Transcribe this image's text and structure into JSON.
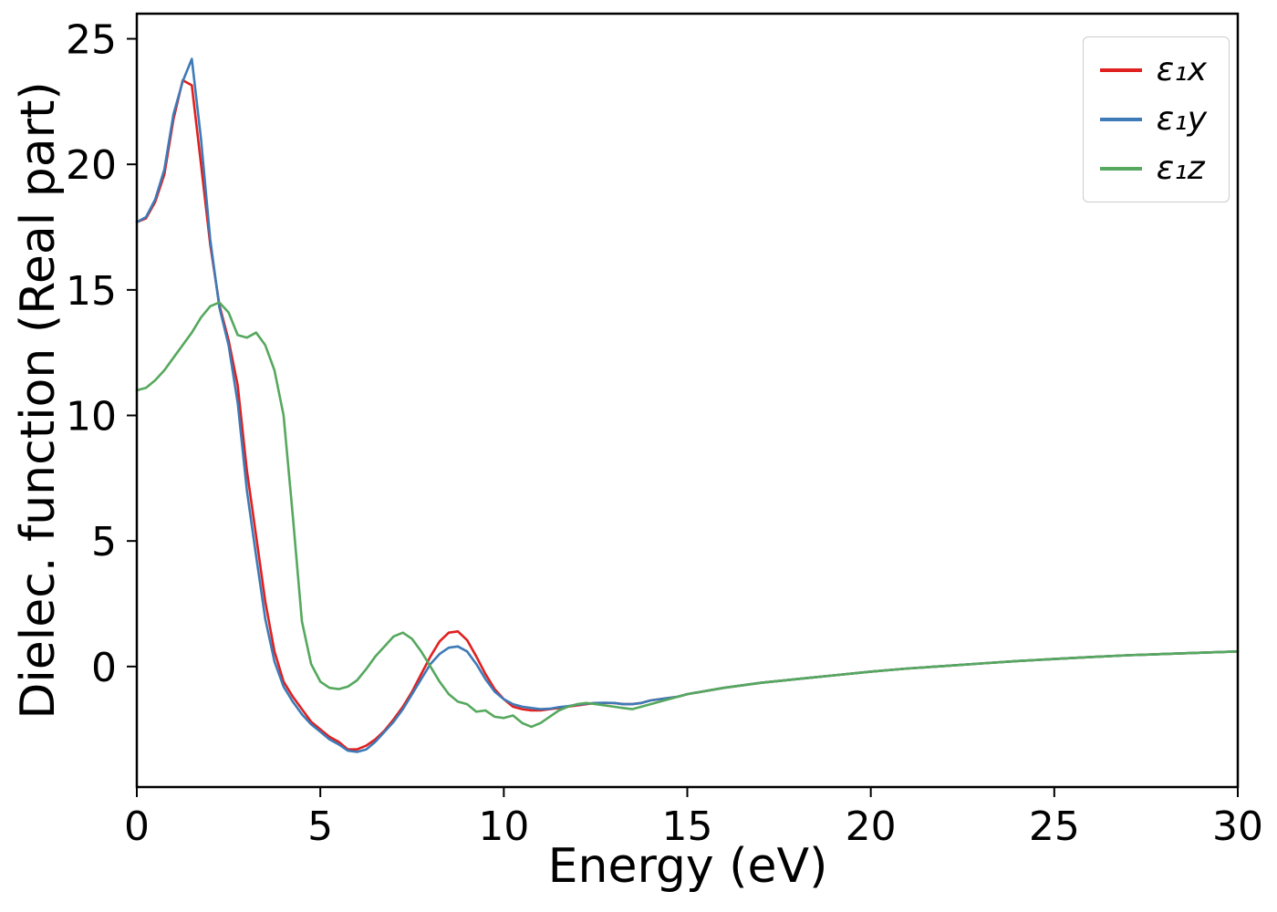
{
  "figure": {
    "background": "#ffffff",
    "axes_color": "#000000"
  },
  "chart_data": {
    "type": "line",
    "title": "",
    "xlabel": "Energy (eV)",
    "ylabel": "Dielec. function (Real part)",
    "xlim": [
      0,
      30
    ],
    "ylim": [
      -4.8,
      26
    ],
    "xticks": [
      0,
      5,
      10,
      15,
      20,
      25,
      30
    ],
    "yticks": [
      0,
      5,
      10,
      15,
      20,
      25
    ],
    "grid": false,
    "legend_position": "upper right",
    "x": [
      0,
      0.25,
      0.5,
      0.75,
      1,
      1.25,
      1.5,
      1.75,
      2,
      2.25,
      2.5,
      2.75,
      3,
      3.25,
      3.5,
      3.75,
      4,
      4.25,
      4.5,
      4.75,
      5,
      5.25,
      5.5,
      5.75,
      6,
      6.25,
      6.5,
      6.75,
      7,
      7.25,
      7.5,
      7.75,
      8,
      8.25,
      8.5,
      8.75,
      9,
      9.25,
      9.5,
      9.75,
      10,
      10.25,
      10.5,
      10.75,
      11,
      11.25,
      11.5,
      11.75,
      12,
      12.25,
      12.5,
      12.75,
      13,
      13.25,
      13.5,
      13.75,
      14,
      14.25,
      14.5,
      14.75,
      15,
      16,
      17,
      18,
      19,
      20,
      21,
      22,
      23,
      24,
      25,
      26,
      27,
      28,
      29,
      30
    ],
    "series": [
      {
        "name": "eps1x",
        "label": "ε₁x",
        "color": "#e0201f",
        "values": [
          17.7,
          17.85,
          18.5,
          19.6,
          21.8,
          23.35,
          23.15,
          20.0,
          16.8,
          14.4,
          13.0,
          11.2,
          7.8,
          5.2,
          2.6,
          0.6,
          -0.6,
          -1.2,
          -1.7,
          -2.2,
          -2.5,
          -2.8,
          -3.0,
          -3.3,
          -3.3,
          -3.15,
          -2.9,
          -2.55,
          -2.1,
          -1.6,
          -1.0,
          -0.3,
          0.4,
          1.0,
          1.35,
          1.4,
          1.05,
          0.4,
          -0.3,
          -0.9,
          -1.3,
          -1.6,
          -1.7,
          -1.75,
          -1.75,
          -1.7,
          -1.65,
          -1.6,
          -1.55,
          -1.5,
          -1.45,
          -1.45,
          -1.45,
          -1.5,
          -1.5,
          -1.45,
          -1.35,
          -1.3,
          -1.25,
          -1.2,
          -1.1,
          -0.85,
          -0.65,
          -0.5,
          -0.35,
          -0.2,
          -0.08,
          0.02,
          0.12,
          0.22,
          0.3,
          0.38,
          0.45,
          0.5,
          0.55,
          0.6
        ]
      },
      {
        "name": "eps1y",
        "label": "ε₁y",
        "color": "#3d7ab7",
        "values": [
          17.7,
          17.9,
          18.6,
          19.8,
          22.0,
          23.3,
          24.2,
          21.0,
          17.0,
          14.3,
          12.8,
          10.5,
          7.0,
          4.4,
          1.9,
          0.2,
          -0.8,
          -1.4,
          -1.9,
          -2.3,
          -2.6,
          -2.9,
          -3.1,
          -3.35,
          -3.4,
          -3.3,
          -3.0,
          -2.6,
          -2.2,
          -1.7,
          -1.1,
          -0.5,
          0.1,
          0.5,
          0.75,
          0.8,
          0.6,
          0.1,
          -0.5,
          -1.0,
          -1.3,
          -1.5,
          -1.6,
          -1.65,
          -1.7,
          -1.68,
          -1.62,
          -1.58,
          -1.52,
          -1.48,
          -1.45,
          -1.44,
          -1.45,
          -1.5,
          -1.5,
          -1.45,
          -1.35,
          -1.3,
          -1.25,
          -1.2,
          -1.1,
          -0.85,
          -0.65,
          -0.5,
          -0.35,
          -0.2,
          -0.08,
          0.02,
          0.12,
          0.22,
          0.3,
          0.38,
          0.45,
          0.5,
          0.55,
          0.6
        ]
      },
      {
        "name": "eps1z",
        "label": "ε₁z",
        "color": "#55a85e",
        "values": [
          11.0,
          11.1,
          11.4,
          11.8,
          12.3,
          12.8,
          13.3,
          13.9,
          14.35,
          14.5,
          14.1,
          13.2,
          13.1,
          13.3,
          12.8,
          11.8,
          10.0,
          6.0,
          1.8,
          0.1,
          -0.6,
          -0.85,
          -0.9,
          -0.8,
          -0.55,
          -0.1,
          0.4,
          0.8,
          1.2,
          1.35,
          1.1,
          0.6,
          0.0,
          -0.6,
          -1.1,
          -1.4,
          -1.5,
          -1.8,
          -1.75,
          -2.0,
          -2.05,
          -1.95,
          -2.25,
          -2.4,
          -2.25,
          -2.0,
          -1.75,
          -1.6,
          -1.5,
          -1.45,
          -1.5,
          -1.55,
          -1.6,
          -1.65,
          -1.7,
          -1.6,
          -1.5,
          -1.4,
          -1.3,
          -1.2,
          -1.1,
          -0.85,
          -0.65,
          -0.5,
          -0.35,
          -0.2,
          -0.08,
          0.02,
          0.12,
          0.22,
          0.3,
          0.38,
          0.45,
          0.5,
          0.55,
          0.6
        ]
      }
    ]
  }
}
